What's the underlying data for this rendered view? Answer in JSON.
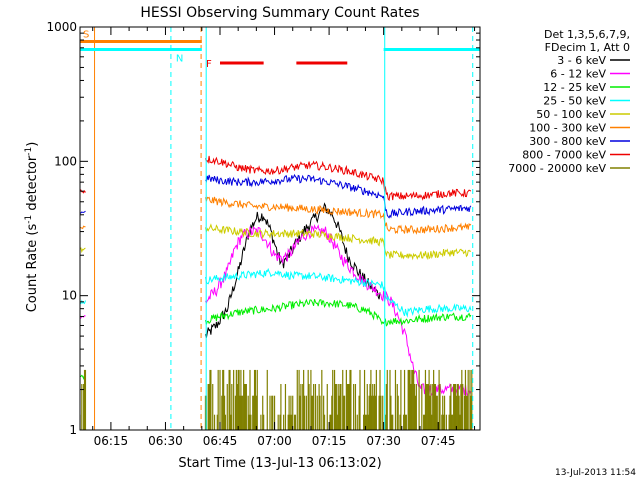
{
  "chart_data": {
    "type": "line",
    "title": "HESSI Observing Summary Count Rates",
    "xlabel": "Start Time (13-Jul-13 06:13:02)",
    "ylabel_main": "Count Rate (s",
    "ylabel_sup1": "-1",
    "ylabel_mid": " detector",
    "ylabel_sup2": "-1",
    "ylabel_end": ")",
    "yscale": "log",
    "ylim": [
      1,
      1000
    ],
    "xlim_minutes": [
      6.5,
      116.5
    ],
    "x_tick_labels": [
      "06:15",
      "06:30",
      "06:45",
      "07:00",
      "07:15",
      "07:30",
      "07:45"
    ],
    "x_tick_minutes": [
      15,
      30,
      45,
      60,
      75,
      90,
      105
    ],
    "y_tick_labels": [
      "1",
      "10",
      "100",
      "1000"
    ],
    "y_tick_values": [
      1,
      10,
      100,
      1000
    ],
    "timestamp": "13-Jul-2013 11:54",
    "legend": {
      "header_line1": "Det 1,3,5,6,7,9,",
      "header_line2": "FDecim 1, Att 0",
      "entries": [
        {
          "label": "3 - 6 keV",
          "color": "#000000"
        },
        {
          "label": "6 - 12 keV",
          "color": "#ff00ff"
        },
        {
          "label": "12 - 25 keV",
          "color": "#00ee00"
        },
        {
          "label": "25 - 50 keV",
          "color": "#00ffff"
        },
        {
          "label": "50 - 100 keV",
          "color": "#cccc00"
        },
        {
          "label": "100 - 300 keV",
          "color": "#ff8000"
        },
        {
          "label": "300 - 800 keV",
          "color": "#0000dd"
        },
        {
          "label": "800 - 7000 keV",
          "color": "#ee0000"
        },
        {
          "label": "7000 - 20000 keV",
          "color": "#808000"
        }
      ]
    },
    "flags": [
      {
        "label": "S",
        "color": "#ff8000",
        "start_min": 6.5,
        "end_min": 40,
        "level": 780
      },
      {
        "label": "N",
        "color": "#00ffff",
        "start_min": 6.5,
        "end_min": 40,
        "level": 680
      },
      {
        "label": "N",
        "color": "#00ffff",
        "start_min": 90,
        "end_min": 116.5,
        "level": 680
      },
      {
        "label": "F",
        "color": "#ee0000",
        "segments_min": [
          [
            45,
            57
          ],
          [
            66,
            80
          ]
        ],
        "level": 540
      }
    ],
    "vlines": [
      {
        "minute": 10.5,
        "color": "#ff8000",
        "style": "solid"
      },
      {
        "minute": 39.8,
        "color": "#ff8000",
        "style": "dashed"
      },
      {
        "minute": 31.5,
        "color": "#00ffff",
        "style": "dashed"
      },
      {
        "minute": 41.2,
        "color": "#00ffff",
        "style": "solid"
      },
      {
        "minute": 90.3,
        "color": "#00ffff",
        "style": "solid"
      },
      {
        "minute": 114.5,
        "color": "#00ffff",
        "style": "dashed"
      }
    ],
    "series": [
      {
        "name": "3 - 6 keV",
        "color": "#000000",
        "points": [
          [
            41,
            5
          ],
          [
            44,
            6
          ],
          [
            47,
            8
          ],
          [
            50,
            15
          ],
          [
            53,
            30
          ],
          [
            55,
            38
          ],
          [
            57,
            40
          ],
          [
            59,
            30
          ],
          [
            61,
            20
          ],
          [
            62,
            17
          ],
          [
            64,
            20
          ],
          [
            66,
            25
          ],
          [
            68,
            30
          ],
          [
            70,
            35
          ],
          [
            72,
            40
          ],
          [
            74,
            45
          ],
          [
            76,
            40
          ],
          [
            78,
            30
          ],
          [
            80,
            20
          ],
          [
            83,
            15
          ],
          [
            86,
            12
          ],
          [
            89,
            10
          ]
        ]
      },
      {
        "name": "6 - 12 keV",
        "color": "#ff00ff",
        "points": [
          [
            41,
            9
          ],
          [
            44,
            11
          ],
          [
            47,
            15
          ],
          [
            49,
            22
          ],
          [
            51,
            28
          ],
          [
            54,
            30
          ],
          [
            56,
            30
          ],
          [
            58,
            25
          ],
          [
            60,
            20
          ],
          [
            62,
            19
          ],
          [
            64,
            20
          ],
          [
            66,
            24
          ],
          [
            68,
            28
          ],
          [
            70,
            30
          ],
          [
            72,
            30
          ],
          [
            74,
            30
          ],
          [
            76,
            25
          ],
          [
            78,
            20
          ],
          [
            80,
            17
          ],
          [
            82,
            15
          ],
          [
            84,
            13
          ],
          [
            86,
            12
          ],
          [
            88,
            11
          ],
          [
            90,
            10
          ],
          [
            92,
            9
          ],
          [
            94,
            7
          ],
          [
            96,
            5
          ],
          [
            98,
            3
          ],
          [
            100,
            2
          ],
          [
            104,
            2
          ],
          [
            108,
            2
          ],
          [
            112,
            2
          ],
          [
            114,
            2
          ]
        ],
        "pre_points": [
          [
            6.5,
            7
          ],
          [
            8,
            7
          ]
        ]
      },
      {
        "name": "12 - 25 keV",
        "color": "#00ee00",
        "points": [
          [
            41,
            6.5
          ],
          [
            45,
            7
          ],
          [
            50,
            7.5
          ],
          [
            55,
            7.8
          ],
          [
            60,
            8
          ],
          [
            65,
            8.5
          ],
          [
            70,
            8.8
          ],
          [
            75,
            8.8
          ],
          [
            80,
            8.5
          ],
          [
            85,
            7.8
          ],
          [
            88,
            7
          ],
          [
            89.8,
            6
          ],
          [
            91,
            6.5
          ],
          [
            96,
            6.5
          ],
          [
            102,
            6.8
          ],
          [
            108,
            7
          ],
          [
            114,
            7
          ]
        ],
        "pre_points": [
          [
            6.5,
            2.5
          ],
          [
            8,
            2.5
          ]
        ]
      },
      {
        "name": "25 - 50 keV",
        "color": "#00ffff",
        "points": [
          [
            41,
            13
          ],
          [
            45,
            13.5
          ],
          [
            50,
            14
          ],
          [
            55,
            14.5
          ],
          [
            60,
            15
          ],
          [
            65,
            14
          ],
          [
            70,
            14
          ],
          [
            75,
            13.5
          ],
          [
            80,
            13
          ],
          [
            85,
            12.5
          ],
          [
            89.8,
            12
          ],
          [
            91,
            9.5
          ],
          [
            96,
            7.5
          ],
          [
            102,
            8
          ],
          [
            108,
            8
          ],
          [
            114,
            8
          ]
        ],
        "pre_points": [
          [
            6.5,
            9
          ],
          [
            8,
            9
          ]
        ]
      },
      {
        "name": "50 - 100 keV",
        "color": "#cccc00",
        "points": [
          [
            41,
            32
          ],
          [
            45,
            31
          ],
          [
            50,
            30
          ],
          [
            55,
            29
          ],
          [
            60,
            29
          ],
          [
            65,
            29
          ],
          [
            70,
            29
          ],
          [
            75,
            28
          ],
          [
            80,
            27
          ],
          [
            85,
            26
          ],
          [
            89.8,
            25
          ],
          [
            91,
            20
          ],
          [
            96,
            20
          ],
          [
            102,
            20
          ],
          [
            108,
            21
          ],
          [
            114,
            21
          ]
        ],
        "pre_points": [
          [
            6.5,
            22
          ],
          [
            8,
            22
          ]
        ]
      },
      {
        "name": "100 - 300 keV",
        "color": "#ff8000",
        "points": [
          [
            41,
            52
          ],
          [
            45,
            50
          ],
          [
            50,
            48
          ],
          [
            55,
            46
          ],
          [
            60,
            46
          ],
          [
            65,
            45
          ],
          [
            70,
            44
          ],
          [
            75,
            43
          ],
          [
            80,
            42
          ],
          [
            85,
            41
          ],
          [
            89.8,
            40
          ],
          [
            91,
            31
          ],
          [
            96,
            31
          ],
          [
            102,
            31
          ],
          [
            108,
            32
          ],
          [
            114,
            32
          ]
        ],
        "pre_points": [
          [
            6.5,
            32
          ],
          [
            8,
            32
          ]
        ]
      },
      {
        "name": "300 - 800 keV",
        "color": "#0000dd",
        "points": [
          [
            41,
            75
          ],
          [
            45,
            72
          ],
          [
            50,
            70
          ],
          [
            55,
            70
          ],
          [
            60,
            72
          ],
          [
            65,
            74
          ],
          [
            70,
            74
          ],
          [
            75,
            70
          ],
          [
            80,
            65
          ],
          [
            85,
            60
          ],
          [
            89.8,
            55
          ],
          [
            91,
            40
          ],
          [
            96,
            42
          ],
          [
            102,
            43
          ],
          [
            108,
            44
          ],
          [
            114,
            45
          ]
        ],
        "pre_points": [
          [
            6.5,
            42
          ],
          [
            8,
            42
          ]
        ]
      },
      {
        "name": "800 - 7000 keV",
        "color": "#ee0000",
        "points": [
          [
            41,
            105
          ],
          [
            45,
            100
          ],
          [
            50,
            90
          ],
          [
            55,
            85
          ],
          [
            60,
            85
          ],
          [
            65,
            90
          ],
          [
            70,
            94
          ],
          [
            75,
            90
          ],
          [
            80,
            85
          ],
          [
            85,
            78
          ],
          [
            89.8,
            72
          ],
          [
            91,
            55
          ],
          [
            96,
            55
          ],
          [
            102,
            56
          ],
          [
            108,
            58
          ],
          [
            114,
            58
          ]
        ],
        "pre_points": [
          [
            6.5,
            60
          ],
          [
            8,
            60
          ]
        ]
      },
      {
        "name": "7000 - 20000 keV",
        "color": "#808000",
        "points": [
          [
            6.5,
            1.8
          ],
          [
            8,
            1.8
          ],
          [
            41,
            1.8
          ],
          [
            114,
            1.8
          ]
        ]
      }
    ]
  }
}
